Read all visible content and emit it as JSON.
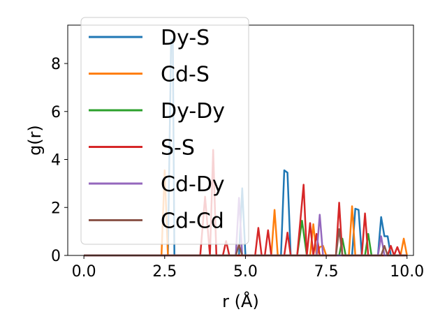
{
  "chart_data": {
    "type": "line",
    "xlabel": "r (Å)",
    "ylabel": "g(r)",
    "xlim": [
      -0.5,
      10.2
    ],
    "ylim": [
      0,
      9.6
    ],
    "xticks": [
      "0.0",
      "2.5",
      "5.0",
      "7.5",
      "10.0"
    ],
    "xtick_values": [
      0,
      2.5,
      5,
      7.5,
      10
    ],
    "yticks": [
      "0",
      "2",
      "4",
      "6",
      "8"
    ],
    "ytick_values": [
      0,
      2,
      4,
      6,
      8
    ],
    "legend_position": "upper-left",
    "grid": false,
    "series": [
      {
        "name": "Dy-S",
        "color": "#1f77b4",
        "x": [
          0,
          2.6,
          2.7,
          2.75,
          2.8,
          2.9,
          4.8,
          4.9,
          5.0,
          6.0,
          6.1,
          6.2,
          6.3,
          6.4,
          8.2,
          8.3,
          8.4,
          8.5,
          8.6,
          9.1,
          9.2,
          9.3,
          9.4,
          9.5,
          9.6,
          10.0
        ],
        "y": [
          0,
          0,
          9.0,
          9.0,
          0,
          0,
          0,
          2.8,
          0,
          0,
          0,
          3.55,
          3.45,
          0,
          0,
          0,
          1.95,
          1.9,
          0,
          0,
          1.6,
          0.8,
          0.8,
          0,
          0,
          0
        ]
      },
      {
        "name": "Cd-S",
        "color": "#ff7f0e",
        "x": [
          0,
          2.4,
          2.5,
          2.6,
          5.8,
          5.9,
          6.0,
          7.0,
          7.1,
          7.2,
          7.3,
          7.4,
          7.5,
          8.2,
          8.3,
          8.4,
          9.8,
          9.9,
          10.0
        ],
        "y": [
          0,
          0,
          3.55,
          0,
          0,
          1.9,
          0,
          0,
          1.3,
          0,
          0.35,
          0.4,
          0,
          0,
          2.05,
          0,
          0,
          0.7,
          0
        ]
      },
      {
        "name": "Dy-Dy",
        "color": "#2ca02c",
        "x": [
          0,
          6.6,
          6.75,
          6.9,
          7.9,
          8.0,
          8.1,
          8.7,
          8.8,
          8.9,
          10.0
        ],
        "y": [
          0,
          0,
          1.45,
          0,
          0,
          0.7,
          0,
          0,
          0.9,
          0,
          0
        ]
      },
      {
        "name": "S-S",
        "color": "#d62728",
        "x": [
          0,
          3.6,
          3.75,
          3.9,
          4.0,
          4.1,
          4.3,
          4.4,
          4.5,
          5.3,
          5.4,
          5.5,
          5.6,
          5.7,
          5.8,
          6.2,
          6.3,
          6.4,
          6.6,
          6.8,
          6.9,
          7.0,
          7.1,
          7.2,
          7.3,
          7.8,
          7.9,
          8.0,
          8.1,
          8.6,
          8.7,
          8.8,
          8.9,
          9.4,
          9.5,
          9.6,
          9.7,
          9.8,
          10.0
        ],
        "y": [
          0,
          0,
          2.45,
          0,
          4.4,
          0,
          0,
          0.6,
          0,
          0,
          1.15,
          0,
          0,
          1.05,
          0,
          0,
          0.95,
          0,
          0,
          2.95,
          0,
          1.35,
          0,
          0.9,
          0,
          0,
          2.2,
          0,
          0,
          0,
          1.75,
          0,
          0,
          0,
          0.4,
          0,
          0.35,
          0,
          0
        ]
      },
      {
        "name": "Cd-Dy",
        "color": "#9467bd",
        "x": [
          0,
          4.7,
          4.8,
          4.9,
          7.2,
          7.3,
          7.4,
          9.1,
          9.2,
          9.3,
          10.0
        ],
        "y": [
          0,
          0,
          2.4,
          0,
          0,
          1.7,
          0,
          0,
          0.8,
          0,
          0
        ]
      },
      {
        "name": "Cd-Cd",
        "color": "#8c564b",
        "x": [
          0,
          4.7,
          4.8,
          4.9,
          7.8,
          7.9,
          8.0,
          9.2,
          9.3,
          9.4,
          10.0
        ],
        "y": [
          0,
          0,
          0.45,
          0,
          0,
          1.1,
          0,
          0,
          0.4,
          0,
          0
        ]
      }
    ]
  }
}
